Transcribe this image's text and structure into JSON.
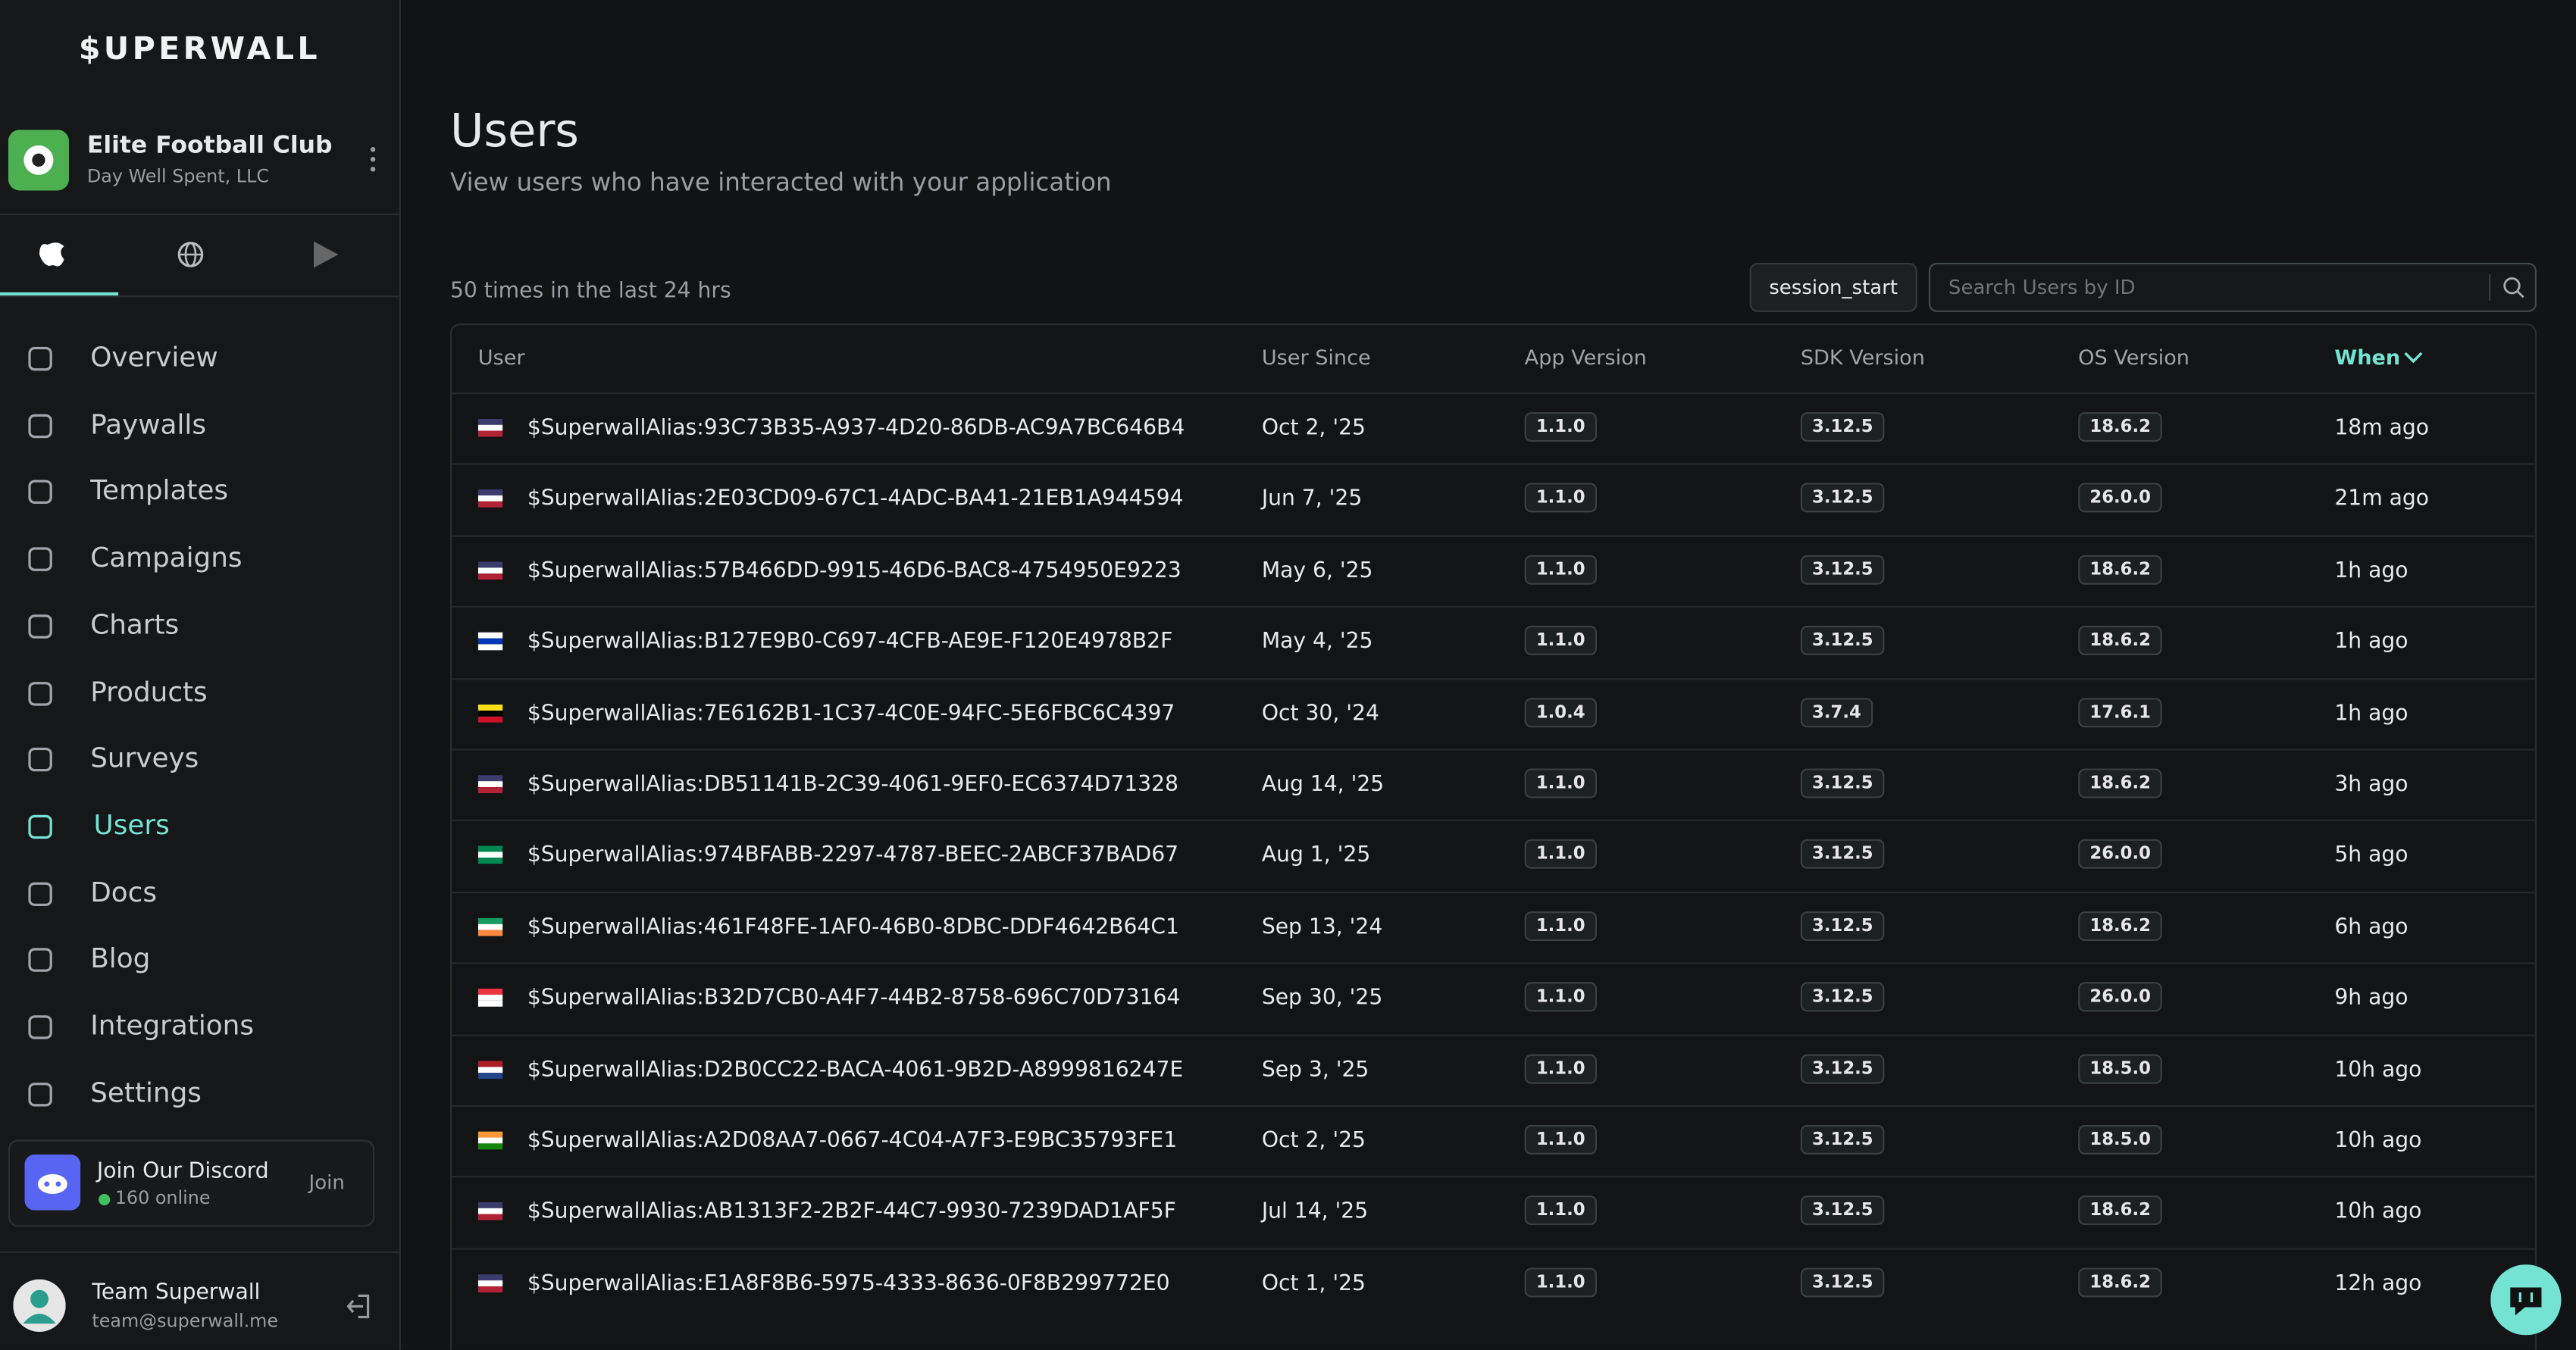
{
  "sidebar": {
    "brand": "$UPERWALL",
    "app": {
      "name": "Elite Football Club",
      "company": "Day Well Spent, LLC"
    },
    "nav": [
      "Overview",
      "Paywalls",
      "Templates",
      "Campaigns",
      "Charts",
      "Products",
      "Surveys",
      "Users",
      "Docs",
      "Blog",
      "Integrations",
      "Settings"
    ],
    "discord": {
      "title": "Join Our Discord",
      "online": "160 online",
      "action": "Join"
    },
    "user": {
      "name": "Team Superwall",
      "email": "team@superwall.me"
    }
  },
  "main": {
    "title": "Users",
    "subtitle": "View users who have interacted with your application",
    "count": "50 times in the last 24 hrs",
    "event": "session_start",
    "search_placeholder": "Search Users by ID",
    "table": {
      "headers": [
        "User",
        "User Since",
        "App Version",
        "SDK Version",
        "OS Version",
        "When"
      ],
      "rows": [
        [
          "$SuperwallAlias:93C73B35-A937-4D20-86DB-AC9A7BC646B4",
          "Oct 2, '25",
          "1.1.0",
          "3.12.5",
          "18.6.2",
          "18m ago"
        ],
        [
          "$SuperwallAlias:2E03CD09-67C1-4ADC-BA41-21EB1A944594",
          "Jun 7, '25",
          "1.1.0",
          "3.12.5",
          "26.0.0",
          "21m ago"
        ],
        [
          "$SuperwallAlias:57B466DD-9915-46D6-BAC8-4754950E9223",
          "May 6, '25",
          "1.1.0",
          "3.12.5",
          "18.6.2",
          "1h ago"
        ],
        [
          "$SuperwallAlias:B127E9B0-C697-4CFB-AE9E-F120E4978B2F",
          "May 4, '25",
          "1.1.0",
          "3.12.5",
          "18.6.2",
          "1h ago"
        ],
        [
          "$SuperwallAlias:7E6162B1-1C37-4C0E-94FC-5E6FBC6C4397",
          "Oct 30, '24",
          "1.0.4",
          "3.7.4",
          "17.6.1",
          "1h ago"
        ],
        [
          "$SuperwallAlias:DB51141B-2C39-4061-9EF0-EC6374D71328",
          "Aug 14, '25",
          "1.1.0",
          "3.12.5",
          "18.6.2",
          "3h ago"
        ],
        [
          "$SuperwallAlias:974BFABB-2297-4787-BEEC-2ABCF37BAD67",
          "Aug 1, '25",
          "1.1.0",
          "3.12.5",
          "26.0.0",
          "5h ago"
        ],
        [
          "$SuperwallAlias:461F48FE-1AF0-46B0-8DBC-DDF4642B64C1",
          "Sep 13, '24",
          "1.1.0",
          "3.12.5",
          "18.6.2",
          "6h ago"
        ],
        [
          "$SuperwallAlias:B32D7CB0-A4F7-44B2-8758-696C70D73164",
          "Sep 30, '25",
          "1.1.0",
          "3.12.5",
          "26.0.0",
          "9h ago"
        ],
        [
          "$SuperwallAlias:D2B0CC22-BACA-4061-9B2D-A8999816247E",
          "Sep 3, '25",
          "1.1.0",
          "3.12.5",
          "18.5.0",
          "10h ago"
        ],
        [
          "$SuperwallAlias:A2D08AA7-0667-4C04-A7F3-E9BC35793FE1",
          "Oct 2, '25",
          "1.1.0",
          "3.12.5",
          "18.5.0",
          "10h ago"
        ],
        [
          "$SuperwallAlias:AB1313F2-2B2F-44C7-9930-7239DAD1AF5F",
          "Jul 14, '25",
          "1.1.0",
          "3.12.5",
          "18.6.2",
          "10h ago"
        ],
        [
          "$SuperwallAlias:E1A8F8B6-5975-4333-8636-0F8B299772E0",
          "Oct 1, '25",
          "1.1.0",
          "3.12.5",
          "18.6.2",
          "12h ago"
        ]
      ]
    }
  }
}
